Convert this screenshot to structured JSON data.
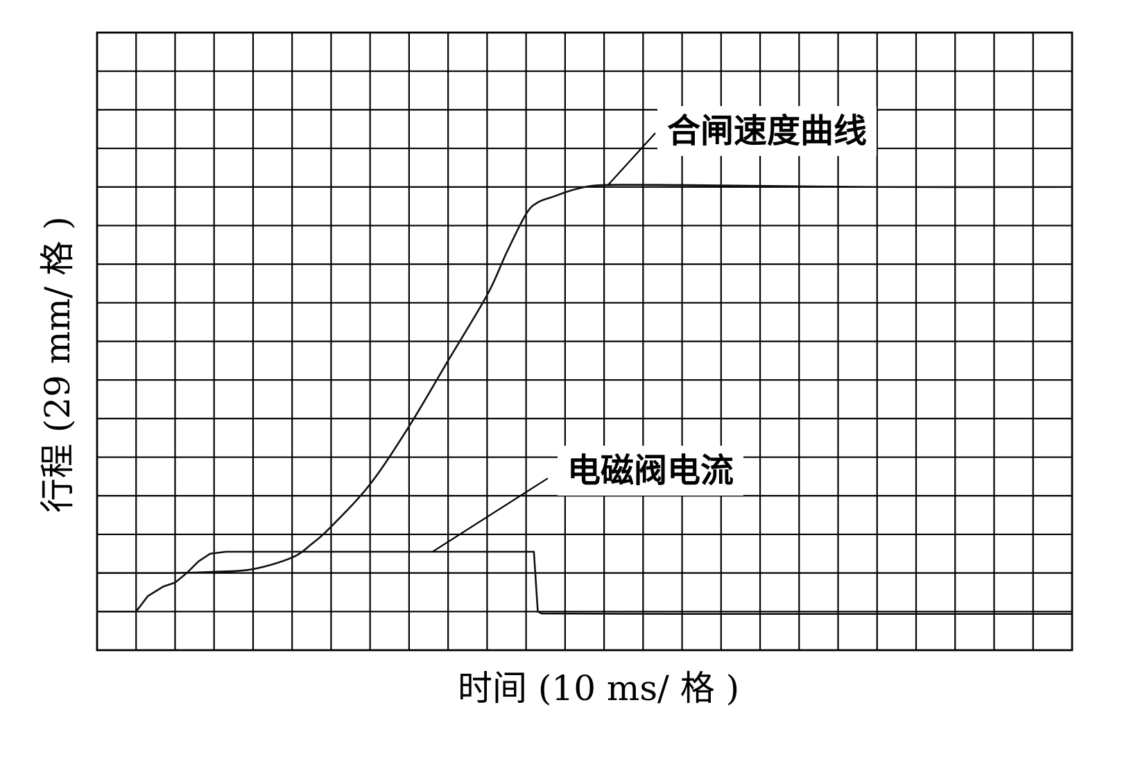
{
  "chart_data": {
    "type": "line",
    "xlabel": "时间 (10 ms/ 格 )",
    "ylabel": "行程 (29 mm/ 格 )",
    "x_divisions": 25,
    "y_divisions": 16,
    "grid": true,
    "xlim": [
      0,
      25
    ],
    "ylim": [
      0,
      16
    ],
    "series": [
      {
        "name": "合闸速度曲线",
        "color": "#111111",
        "points": [
          [
            0,
            2.0
          ],
          [
            1,
            2.0
          ],
          [
            2,
            2.0
          ],
          [
            3,
            2.03
          ],
          [
            4,
            2.1
          ],
          [
            5,
            2.4
          ],
          [
            5.5,
            2.75
          ],
          [
            6,
            3.2
          ],
          [
            7,
            4.3
          ],
          [
            8,
            5.8
          ],
          [
            9,
            7.5
          ],
          [
            10,
            9.2
          ],
          [
            10.5,
            10.3
          ],
          [
            11,
            11.3
          ],
          [
            11.3,
            11.6
          ],
          [
            11.7,
            11.75
          ],
          [
            12.3,
            11.95
          ],
          [
            13,
            12.05
          ],
          [
            15,
            12.05
          ],
          [
            20,
            12.0
          ],
          [
            25,
            12.0
          ]
        ]
      },
      {
        "name": "电磁阀电流",
        "color": "#111111",
        "points": [
          [
            0,
            1.0
          ],
          [
            1.0,
            1.0
          ],
          [
            1.3,
            1.4
          ],
          [
            1.7,
            1.65
          ],
          [
            2.0,
            1.75
          ],
          [
            2.3,
            2.0
          ],
          [
            2.6,
            2.3
          ],
          [
            2.9,
            2.5
          ],
          [
            3.3,
            2.55
          ],
          [
            5,
            2.55
          ],
          [
            8,
            2.55
          ],
          [
            10,
            2.55
          ],
          [
            11.2,
            2.55
          ],
          [
            11.3,
            1.0
          ],
          [
            11.4,
            0.95
          ],
          [
            15,
            0.94
          ],
          [
            25,
            0.94
          ]
        ]
      }
    ],
    "annotations": [
      {
        "text": "合闸速度曲线",
        "target_series": 0
      },
      {
        "text": "电磁阀电流",
        "target_series": 1
      }
    ]
  }
}
